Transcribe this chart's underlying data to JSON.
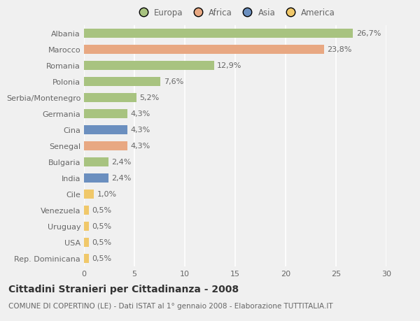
{
  "countries": [
    "Albania",
    "Marocco",
    "Romania",
    "Polonia",
    "Serbia/Montenegro",
    "Germania",
    "Cina",
    "Senegal",
    "Bulgaria",
    "India",
    "Cile",
    "Venezuela",
    "Uruguay",
    "USA",
    "Rep. Dominicana"
  ],
  "values": [
    26.7,
    23.8,
    12.9,
    7.6,
    5.2,
    4.3,
    4.3,
    4.3,
    2.4,
    2.4,
    1.0,
    0.5,
    0.5,
    0.5,
    0.5
  ],
  "labels": [
    "26,7%",
    "23,8%",
    "12,9%",
    "7,6%",
    "5,2%",
    "4,3%",
    "4,3%",
    "4,3%",
    "2,4%",
    "2,4%",
    "1,0%",
    "0,5%",
    "0,5%",
    "0,5%",
    "0,5%"
  ],
  "continents": [
    "Europa",
    "Africa",
    "Europa",
    "Europa",
    "Europa",
    "Europa",
    "Asia",
    "Africa",
    "Europa",
    "Asia",
    "America",
    "America",
    "America",
    "America",
    "America"
  ],
  "colors": {
    "Europa": "#a8c380",
    "Africa": "#e8a882",
    "Asia": "#6b8fbf",
    "America": "#f0c86a"
  },
  "xlim": [
    0,
    30
  ],
  "xticks": [
    0,
    5,
    10,
    15,
    20,
    25,
    30
  ],
  "title": "Cittadini Stranieri per Cittadinanza - 2008",
  "subtitle": "COMUNE DI COPERTINO (LE) - Dati ISTAT al 1° gennaio 2008 - Elaborazione TUTTITALIA.IT",
  "background_color": "#f0f0f0",
  "plot_bg_color": "#f0f0f0",
  "bar_height": 0.55,
  "grid_color": "#ffffff",
  "label_fontsize": 8,
  "tick_fontsize": 8,
  "title_fontsize": 10,
  "subtitle_fontsize": 7.5,
  "legend_fontsize": 8.5
}
